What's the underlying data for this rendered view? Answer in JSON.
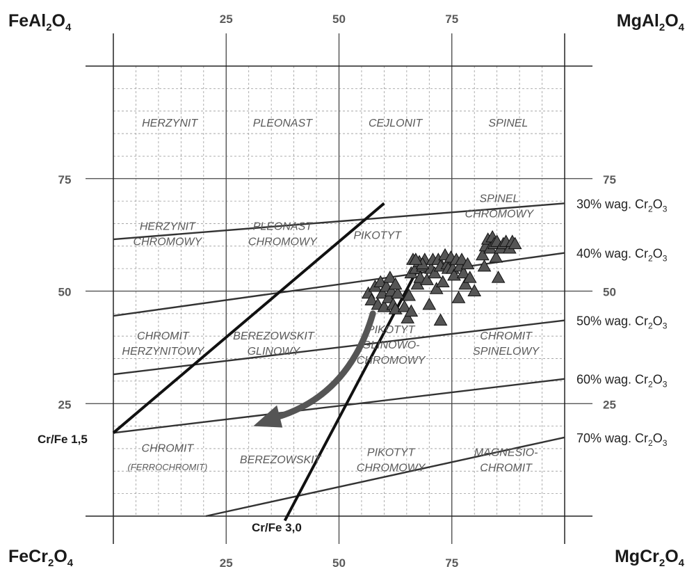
{
  "chart_data": {
    "type": "scatter",
    "title": "",
    "corners": {
      "top_left": {
        "base": "FeAl",
        "sub1": "2",
        "mid": "O",
        "sub2": "4"
      },
      "top_right": {
        "base": "MgAl",
        "sub1": "2",
        "mid": "O",
        "sub2": "4"
      },
      "bottom_left": {
        "base": "FeCr",
        "sub1": "2",
        "mid": "O",
        "sub2": "4"
      },
      "bottom_right": {
        "base": "MgCr",
        "sub1": "2",
        "mid": "O",
        "sub2": "4"
      }
    },
    "x_ticks": [
      "25",
      "50",
      "75"
    ],
    "y_ticks": [
      "75",
      "50",
      "25"
    ],
    "xlim": [
      0,
      100
    ],
    "ylim": [
      0,
      100
    ],
    "grid": true,
    "fields": [
      {
        "lines": [
          "HERZYNIT"
        ],
        "x": 12.5,
        "y": 87.5
      },
      {
        "lines": [
          "PLEONAST"
        ],
        "x": 37.5,
        "y": 87.5
      },
      {
        "lines": [
          "CEJLONIT"
        ],
        "x": 62.5,
        "y": 87.5
      },
      {
        "lines": [
          "SPINEL"
        ],
        "x": 87.5,
        "y": 87.5
      },
      {
        "lines": [
          "SPINEL",
          "CHROMOWY"
        ],
        "x": 85.5,
        "y": 69
      },
      {
        "lines": [
          "HERZYNIT",
          "CHROMOWY"
        ],
        "x": 12,
        "y": 62.8
      },
      {
        "lines": [
          "PLEONAST",
          "CHROMOWY"
        ],
        "x": 37.5,
        "y": 62.8
      },
      {
        "lines": [
          "PIKOTYT"
        ],
        "x": 58.5,
        "y": 62.5
      },
      {
        "lines": [
          "CHROMIT",
          "HERZYNITOWY"
        ],
        "x": 11,
        "y": 38.5
      },
      {
        "lines": [
          "BEREZOWSKIT",
          "GLINOWY"
        ],
        "x": 35.5,
        "y": 38.5
      },
      {
        "lines": [
          "PIKOTYT",
          "GLINOWO-",
          "CHROMOWY"
        ],
        "x": 61.5,
        "y": 38.2
      },
      {
        "lines": [
          "CHROMIT",
          "SPINELOWY"
        ],
        "x": 87,
        "y": 38.5
      },
      {
        "lines": [
          "PIKOTYT",
          "CHROMOWY"
        ],
        "x": 61.5,
        "y": 12.6
      },
      {
        "lines": [
          "BEREZOWSKIT"
        ],
        "x": 37,
        "y": 12.7
      },
      {
        "lines": [
          "MAGNESIO-",
          "CHROMIT"
        ],
        "x": 87,
        "y": 12.6
      }
    ],
    "field_small": {
      "text": "(FERROCHROMIT)",
      "x": 12,
      "y": 10.8
    },
    "field_chromit": {
      "text": "CHROMIT",
      "x": 12,
      "y": 14.3
    },
    "wt_lines": [
      {
        "prefix": "30% wag. Cr",
        "sub": "2",
        "suffix": "O",
        "sub2": "3",
        "y0": 61.5,
        "y1": 69.5
      },
      {
        "prefix": "40% wag. Cr",
        "sub": "2",
        "suffix": "O",
        "sub2": "3",
        "y0": 44.5,
        "y1": 58.5
      },
      {
        "prefix": "50% wag. Cr",
        "sub": "2",
        "suffix": "O",
        "sub2": "3",
        "y0": 31.5,
        "y1": 43.5
      },
      {
        "prefix": "60% wag. Cr",
        "sub": "2",
        "suffix": "O",
        "sub2": "3",
        "y0": 18.5,
        "y1": 30.5
      },
      {
        "prefix": "70% wag. Cr",
        "sub": "2",
        "suffix": "O",
        "sub2": "3",
        "y0": 0,
        "y1": 17.5,
        "x0": 20.5
      }
    ],
    "ratio_lines": [
      {
        "label": "Cr/Fe 1,5",
        "x0": 0,
        "y0": 18.5,
        "x1": 60,
        "y1": 69.5
      },
      {
        "label": "Cr/Fe 3,0",
        "x0": 38,
        "y0": -1,
        "x1": 68,
        "y1": 56
      }
    ],
    "arrow": {
      "from": [
        57.5,
        45
      ],
      "via": [
        52,
        26
      ],
      "to": [
        31,
        20
      ]
    },
    "points": [
      [
        56.5,
        49.5
      ],
      [
        57.2,
        48
      ],
      [
        58,
        51
      ],
      [
        58.6,
        47
      ],
      [
        59.2,
        52
      ],
      [
        59.6,
        49.5
      ],
      [
        60,
        46.5
      ],
      [
        60.5,
        51
      ],
      [
        61,
        48.5
      ],
      [
        61.3,
        53
      ],
      [
        61.6,
        50
      ],
      [
        62,
        47
      ],
      [
        62.5,
        46
      ],
      [
        63,
        49.5
      ],
      [
        64.5,
        46.5
      ],
      [
        65.2,
        44
      ],
      [
        65.5,
        49
      ],
      [
        66,
        45.5
      ],
      [
        66,
        54
      ],
      [
        66.4,
        57
      ],
      [
        67,
        55
      ],
      [
        67.4,
        51.5
      ],
      [
        67.8,
        56.5
      ],
      [
        68,
        53
      ],
      [
        68.6,
        55.5
      ],
      [
        69,
        57
      ],
      [
        69.5,
        52.5
      ],
      [
        70,
        47
      ],
      [
        70.4,
        55
      ],
      [
        70.8,
        57
      ],
      [
        71.2,
        54
      ],
      [
        71.6,
        50.5
      ],
      [
        72,
        57
      ],
      [
        72.5,
        55.5
      ],
      [
        73,
        52
      ],
      [
        73.5,
        58
      ],
      [
        74,
        56
      ],
      [
        74.2,
        55
      ],
      [
        74.8,
        57.5
      ],
      [
        75.2,
        55
      ],
      [
        75.5,
        53.5
      ],
      [
        76,
        57
      ],
      [
        76.5,
        48.5
      ],
      [
        76.8,
        55.5
      ],
      [
        77.2,
        57
      ],
      [
        77.6,
        54
      ],
      [
        78,
        51.5
      ],
      [
        78.5,
        56
      ],
      [
        79,
        53
      ],
      [
        80,
        50
      ],
      [
        81.8,
        58
      ],
      [
        82.2,
        55.5
      ],
      [
        82.5,
        60
      ],
      [
        83,
        61.5
      ],
      [
        83.5,
        59.5
      ],
      [
        84,
        62
      ],
      [
        84.4,
        60.5
      ],
      [
        84.8,
        57.5
      ],
      [
        85,
        61
      ],
      [
        85.3,
        53
      ],
      [
        85.8,
        59.5
      ],
      [
        86.4,
        60.5
      ],
      [
        87,
        61
      ],
      [
        87.8,
        59.5
      ],
      [
        88.4,
        61
      ],
      [
        89,
        60.5
      ],
      [
        72.5,
        43.5
      ],
      [
        68.5,
        56
      ],
      [
        67,
        57
      ],
      [
        62.5,
        51.5
      ]
    ]
  }
}
